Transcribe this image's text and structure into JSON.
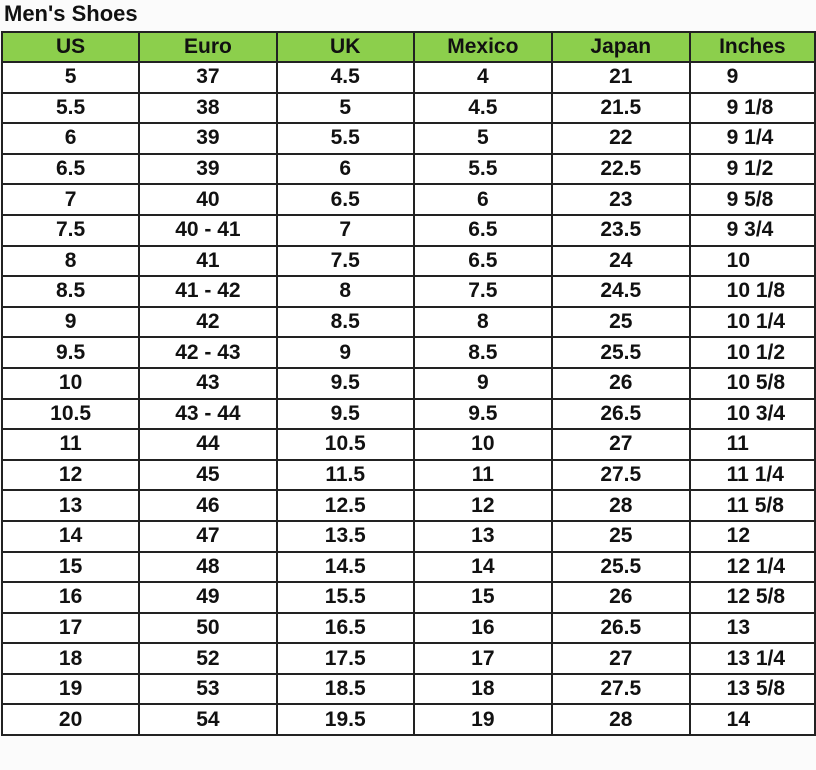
{
  "title": "Men's Shoes",
  "headers": [
    "US",
    "Euro",
    "UK",
    "Mexico",
    "Japan",
    "Inches"
  ],
  "rows": [
    [
      "5",
      "37",
      "4.5",
      "4",
      "21",
      "9"
    ],
    [
      "5.5",
      "38",
      "5",
      "4.5",
      "21.5",
      "9 1/8"
    ],
    [
      "6",
      "39",
      "5.5",
      "5",
      "22",
      "9 1/4"
    ],
    [
      "6.5",
      "39",
      "6",
      "5.5",
      "22.5",
      "9 1/2"
    ],
    [
      "7",
      "40",
      "6.5",
      "6",
      "23",
      "9 5/8"
    ],
    [
      "7.5",
      "40 - 41",
      "7",
      "6.5",
      "23.5",
      "9 3/4"
    ],
    [
      "8",
      "41",
      "7.5",
      "6.5",
      "24",
      "10"
    ],
    [
      "8.5",
      "41 - 42",
      "8",
      "7.5",
      "24.5",
      "10 1/8"
    ],
    [
      "9",
      "42",
      "8.5",
      "8",
      "25",
      "10 1/4"
    ],
    [
      "9.5",
      "42 - 43",
      "9",
      "8.5",
      "25.5",
      "10 1/2"
    ],
    [
      "10",
      "43",
      "9.5",
      "9",
      "26",
      "10 5/8"
    ],
    [
      "10.5",
      "43 - 44",
      "9.5",
      "9.5",
      "26.5",
      "10 3/4"
    ],
    [
      "11",
      "44",
      "10.5",
      "10",
      "27",
      "11"
    ],
    [
      "12",
      "45",
      "11.5",
      "11",
      "27.5",
      "11 1/4"
    ],
    [
      "13",
      "46",
      "12.5",
      "12",
      "28",
      "11 5/8"
    ],
    [
      "14",
      "47",
      "13.5",
      "13",
      "25",
      "12"
    ],
    [
      "15",
      "48",
      "14.5",
      "14",
      "25.5",
      "12 1/4"
    ],
    [
      "16",
      "49",
      "15.5",
      "15",
      "26",
      "12 5/8"
    ],
    [
      "17",
      "50",
      "16.5",
      "16",
      "26.5",
      "13"
    ],
    [
      "18",
      "52",
      "17.5",
      "17",
      "27",
      "13 1/4"
    ],
    [
      "19",
      "53",
      "18.5",
      "18",
      "27.5",
      "13 5/8"
    ],
    [
      "20",
      "54",
      "19.5",
      "19",
      "28",
      "14"
    ]
  ],
  "colors": {
    "header_bg": "#8ccf4c",
    "border": "#222222"
  }
}
